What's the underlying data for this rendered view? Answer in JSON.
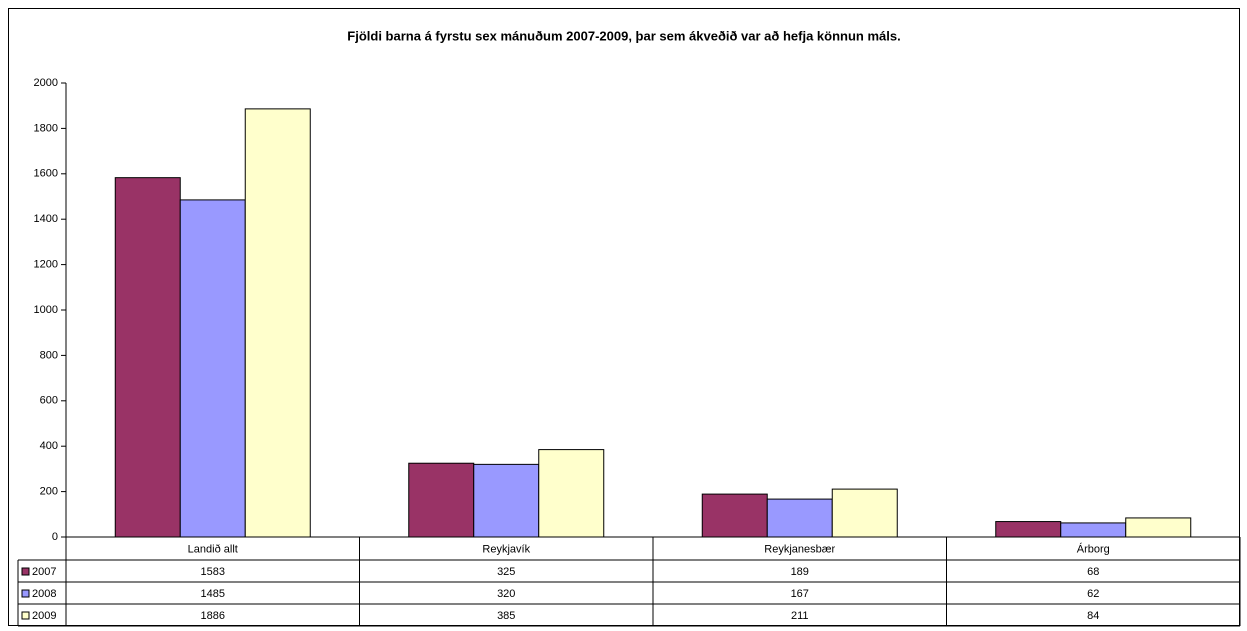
{
  "chart_data": {
    "type": "bar",
    "title": "Fjöldi barna á fyrstu sex mánuðum 2007-2009, þar sem ákveðið var að hefja könnun máls.",
    "categories": [
      "Landið allt",
      "Reykjavík",
      "Reykjanesbær",
      "Árborg"
    ],
    "series": [
      {
        "name": "2007",
        "color": "#993366",
        "values": [
          1583,
          325,
          189,
          68
        ]
      },
      {
        "name": "2008",
        "color": "#9999ff",
        "values": [
          1485,
          320,
          167,
          62
        ]
      },
      {
        "name": "2009",
        "color": "#ffffcc",
        "values": [
          1886,
          385,
          211,
          84
        ]
      }
    ],
    "ylim": [
      0,
      2000
    ],
    "yticks": [
      0,
      200,
      400,
      600,
      800,
      1000,
      1200,
      1400,
      1600,
      1800,
      2000
    ],
    "grid": false
  }
}
